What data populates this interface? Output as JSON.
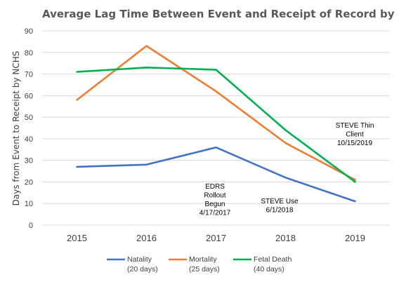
{
  "chart_data": {
    "type": "line",
    "title": "Average Lag Time Between Event and Receipt of Record by NCHS",
    "ylabel": "Days from Event to Receipt by NCHS",
    "xlabel": "",
    "categories": [
      "2015",
      "2016",
      "2017",
      "2018",
      "2019"
    ],
    "ylim": [
      0,
      90
    ],
    "yticks": [
      "0",
      "10",
      "20",
      "30",
      "40",
      "50",
      "60",
      "70",
      "80",
      "90"
    ],
    "grid": true,
    "legend_position": "bottom",
    "series": [
      {
        "name": "Natality",
        "sublabel": "(20 days)",
        "color": "#4472C4",
        "values": [
          27,
          28,
          36,
          22,
          11
        ]
      },
      {
        "name": "Mortality",
        "sublabel": "(25 days)",
        "color": "#ED7D31",
        "values": [
          58,
          83,
          62,
          38,
          21
        ]
      },
      {
        "name": "Fetal Death",
        "sublabel": "(40 days)",
        "color": "#00B050",
        "values": [
          71,
          73,
          72,
          44,
          20
        ]
      }
    ],
    "annotations": [
      {
        "lines": [
          "EDRS",
          "Rollout",
          "Begun",
          "4/17/2017"
        ]
      },
      {
        "lines": [
          "STEVE Use",
          "6/1/2018"
        ]
      },
      {
        "lines": [
          "STEVE Thin",
          "Client",
          "10/15/2019"
        ]
      }
    ]
  }
}
